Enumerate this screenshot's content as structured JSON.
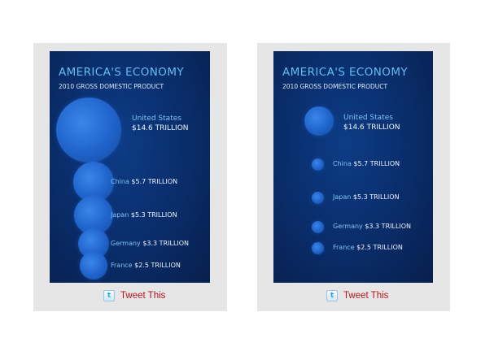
{
  "tweet_label": "Tweet This",
  "twitter_icon_glyph": "t",
  "colors": {
    "title": "#63bdf2",
    "background": "#0a2f6e",
    "bubble": "#2166cf",
    "tweet_text": "#b3141a"
  },
  "chart_data": [
    {
      "type": "bubble",
      "title": "AMERICA'S ECONOMY",
      "subtitle": "2010 GROSS DOMESTIC PRODUCT",
      "unit": "TRILLION",
      "scaling": "area",
      "categories": [
        "United States",
        "China",
        "Japan",
        "Germany",
        "France"
      ],
      "values": [
        14.6,
        5.7,
        5.3,
        3.3,
        2.5
      ],
      "value_labels": [
        "$14.6 TRILLION",
        "$5.7 TRILLION",
        "$5.3 TRILLION",
        "$3.3 TRILLION",
        "$2.5 TRILLION"
      ]
    },
    {
      "type": "bubble",
      "title": "AMERICA'S ECONOMY",
      "subtitle": "2010 GROSS DOMESTIC PRODUCT",
      "unit": "TRILLION",
      "scaling": "radius",
      "categories": [
        "United States",
        "China",
        "Japan",
        "Germany",
        "France"
      ],
      "values": [
        14.6,
        5.7,
        5.3,
        3.3,
        2.5
      ],
      "value_labels": [
        "$14.6 TRILLION",
        "$5.7 TRILLION",
        "$5.3 TRILLION",
        "$3.3 TRILLION",
        "$2.5 TRILLION"
      ]
    }
  ]
}
